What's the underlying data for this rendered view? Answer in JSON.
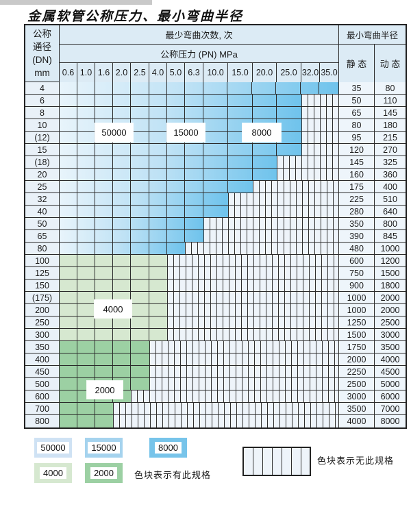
{
  "title": "金属软管公称压力、最小弯曲半径",
  "chart_data": {
    "type": "table",
    "title": "金属软管公称压力、最小弯曲半径",
    "header": {
      "dn_lines": [
        "公称",
        "通径",
        "(DN)",
        "mm"
      ],
      "cycles_label": "最少弯曲次数, 次",
      "pn_label": "公称压力 (PN) MPa",
      "radius_label": "最小弯曲半径",
      "static_label": "静 态",
      "dynamic_label": "动 态"
    },
    "pressures_MPa": [
      "0.6",
      "1.0",
      "1.6",
      "2.0",
      "2.5",
      "4.0",
      "5.0",
      "6.3",
      "10.0",
      "15.0",
      "20.0",
      "25.0",
      "32.0",
      "35.0"
    ],
    "rows": [
      {
        "dn": "4",
        "colored_cols": 14,
        "max_pn": "35.0",
        "band": "blue",
        "static": "35",
        "dynamic": "80"
      },
      {
        "dn": "6",
        "colored_cols": 12,
        "max_pn": "25.0",
        "band": "blue",
        "static": "50",
        "dynamic": "110"
      },
      {
        "dn": "8",
        "colored_cols": 12,
        "max_pn": "25.0",
        "band": "blue",
        "static": "65",
        "dynamic": "145"
      },
      {
        "dn": "10",
        "colored_cols": 12,
        "max_pn": "25.0",
        "band": "blue",
        "static": "80",
        "dynamic": "180"
      },
      {
        "dn": "(12)",
        "colored_cols": 12,
        "max_pn": "25.0",
        "band": "blue",
        "static": "95",
        "dynamic": "215"
      },
      {
        "dn": "15",
        "colored_cols": 12,
        "max_pn": "25.0",
        "band": "blue",
        "static": "120",
        "dynamic": "270"
      },
      {
        "dn": "(18)",
        "colored_cols": 11,
        "max_pn": "20.0",
        "band": "blue",
        "static": "145",
        "dynamic": "325"
      },
      {
        "dn": "20",
        "colored_cols": 11,
        "max_pn": "20.0",
        "band": "blue",
        "static": "160",
        "dynamic": "360"
      },
      {
        "dn": "25",
        "colored_cols": 10,
        "max_pn": "15.0",
        "band": "blue",
        "static": "175",
        "dynamic": "400"
      },
      {
        "dn": "32",
        "colored_cols": 9,
        "max_pn": "10.0",
        "band": "blue",
        "static": "225",
        "dynamic": "510"
      },
      {
        "dn": "40",
        "colored_cols": 9,
        "max_pn": "10.0",
        "band": "blue",
        "static": "280",
        "dynamic": "640"
      },
      {
        "dn": "50",
        "colored_cols": 8,
        "max_pn": "6.3",
        "band": "blue",
        "static": "350",
        "dynamic": "800"
      },
      {
        "dn": "65",
        "colored_cols": 8,
        "max_pn": "6.3",
        "band": "blue",
        "static": "390",
        "dynamic": "845"
      },
      {
        "dn": "80",
        "colored_cols": 7,
        "max_pn": "5.0",
        "band": "blue",
        "static": "480",
        "dynamic": "1000"
      },
      {
        "dn": "100",
        "colored_cols": 6,
        "max_pn": "4.0",
        "band": "green4000",
        "static": "600",
        "dynamic": "1200"
      },
      {
        "dn": "125",
        "colored_cols": 6,
        "max_pn": "4.0",
        "band": "green4000",
        "static": "750",
        "dynamic": "1500"
      },
      {
        "dn": "150",
        "colored_cols": 6,
        "max_pn": "4.0",
        "band": "green4000",
        "static": "900",
        "dynamic": "1800"
      },
      {
        "dn": "(175)",
        "colored_cols": 6,
        "max_pn": "4.0",
        "band": "green4000",
        "static": "1000",
        "dynamic": "2000"
      },
      {
        "dn": "200",
        "colored_cols": 6,
        "max_pn": "4.0",
        "band": "green4000",
        "static": "1000",
        "dynamic": "2000"
      },
      {
        "dn": "250",
        "colored_cols": 6,
        "max_pn": "4.0",
        "band": "green4000",
        "static": "1250",
        "dynamic": "2500"
      },
      {
        "dn": "300",
        "colored_cols": 6,
        "max_pn": "4.0",
        "band": "green4000",
        "static": "1500",
        "dynamic": "3000"
      },
      {
        "dn": "350",
        "colored_cols": 5,
        "max_pn": "2.5",
        "band": "green2000",
        "static": "1750",
        "dynamic": "3500"
      },
      {
        "dn": "400",
        "colored_cols": 5,
        "max_pn": "2.5",
        "band": "green2000",
        "static": "2000",
        "dynamic": "4000"
      },
      {
        "dn": "450",
        "colored_cols": 5,
        "max_pn": "2.5",
        "band": "green2000",
        "static": "2250",
        "dynamic": "4500"
      },
      {
        "dn": "500",
        "colored_cols": 5,
        "max_pn": "2.5",
        "band": "green2000",
        "static": "2500",
        "dynamic": "5000"
      },
      {
        "dn": "600",
        "colored_cols": 4,
        "max_pn": "2.0",
        "band": "green2000",
        "static": "3000",
        "dynamic": "6000"
      },
      {
        "dn": "700",
        "colored_cols": 3,
        "max_pn": "1.6",
        "band": "green2000",
        "static": "3500",
        "dynamic": "7000"
      },
      {
        "dn": "800",
        "colored_cols": 3,
        "max_pn": "1.6",
        "band": "green2000",
        "static": "4000",
        "dynamic": "8000"
      }
    ],
    "region_labels": [
      "50000",
      "15000",
      "8000",
      "4000",
      "2000"
    ]
  },
  "legend": {
    "items": [
      {
        "label": "50000",
        "color": "#cfe2f4"
      },
      {
        "label": "15000",
        "color": "#a5d3ee"
      },
      {
        "label": "8000",
        "color": "#77c4ea"
      },
      {
        "label": "4000",
        "color": "#d6e8d0"
      },
      {
        "label": "2000",
        "color": "#9cd0a3"
      }
    ],
    "has_spec_text": "色块表示有此规格",
    "no_spec_text": "色块表示无此规格"
  },
  "colors": {
    "blue_light": "#e8f4fb",
    "blue_deep": "#6fc3ec",
    "green_4000": "#d6e8d0",
    "green_2000": "#9cd0a3",
    "hatch_bg": "#eef4fa",
    "header_bg": "#dcebf5",
    "dn_bg": "#e9f1f8",
    "radius_bg": "#eef5fb",
    "grid": "#2b2b2b"
  }
}
